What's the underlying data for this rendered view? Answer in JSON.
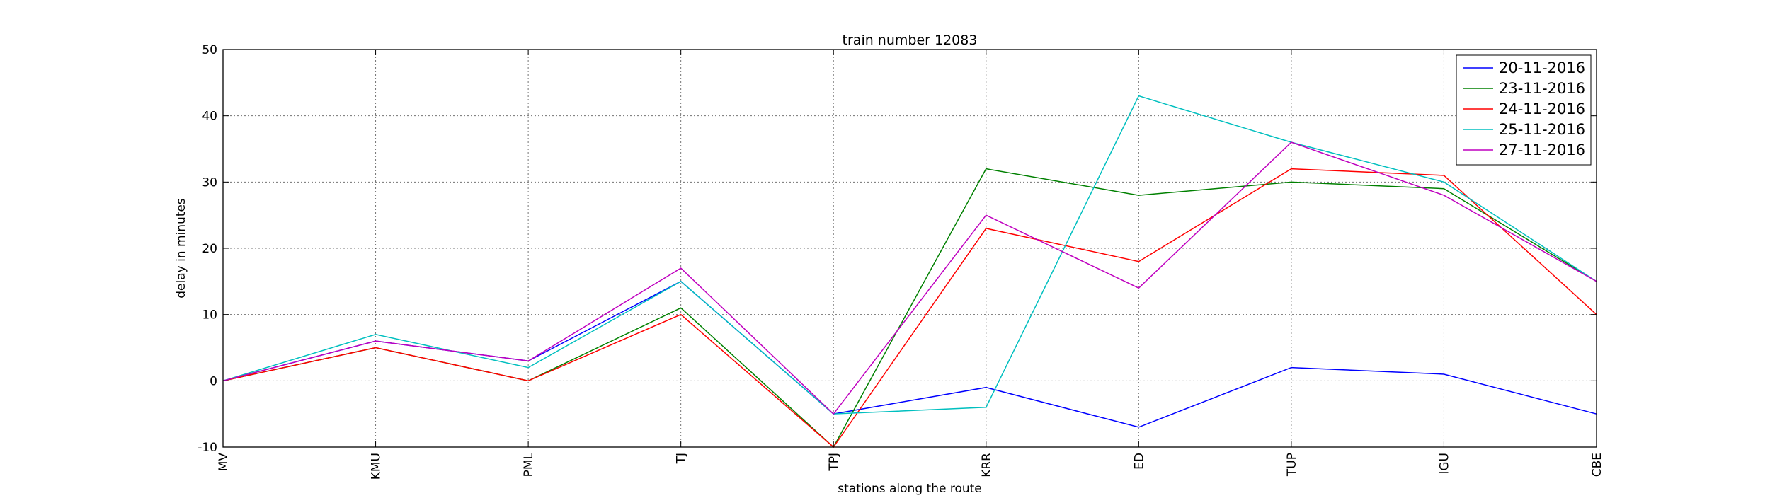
{
  "chart_data": {
    "type": "line",
    "title": "train number 12083",
    "xlabel": "stations along the route",
    "ylabel": "delay in minutes",
    "categories": [
      "MV",
      "KMU",
      "PML",
      "TJ",
      "TPJ",
      "KRR",
      "ED",
      "TUP",
      "IGU",
      "CBE"
    ],
    "ylim": [
      -10,
      50
    ],
    "yticks": [
      "-10",
      "0",
      "10",
      "20",
      "30",
      "40",
      "50"
    ],
    "grid": true,
    "legend_position": "top-right",
    "series": [
      {
        "name": "20-11-2016",
        "color": "#0000ff",
        "values": [
          0,
          6,
          3,
          15,
          -5,
          -1,
          -7,
          2,
          1,
          -5
        ]
      },
      {
        "name": "23-11-2016",
        "color": "#008000",
        "values": [
          0,
          5,
          0,
          11,
          -10,
          32,
          28,
          30,
          29,
          15
        ]
      },
      {
        "name": "24-11-2016",
        "color": "#ff0000",
        "values": [
          0,
          5,
          0,
          10,
          -10,
          23,
          18,
          32,
          31,
          10
        ]
      },
      {
        "name": "25-11-2016",
        "color": "#00bfbf",
        "values": [
          0,
          7,
          2,
          15,
          -5,
          -4,
          43,
          36,
          30,
          15
        ]
      },
      {
        "name": "27-11-2016",
        "color": "#bf00bf",
        "values": [
          0,
          6,
          3,
          17,
          -5,
          25,
          14,
          36,
          28,
          15
        ]
      }
    ]
  }
}
